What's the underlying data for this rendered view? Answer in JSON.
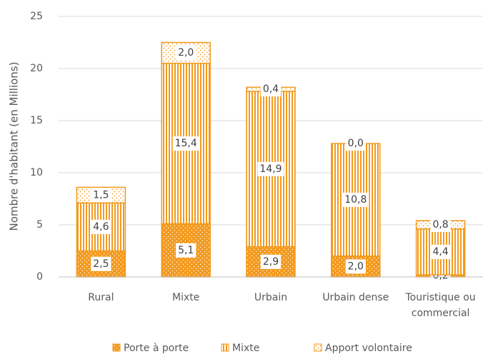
{
  "chart_data": {
    "type": "stacked-bar",
    "y_label": "Nombre d'habitant (en Millions)",
    "categories": [
      "Rural",
      "Mixte",
      "Urbain",
      "Urbain dense",
      "Touristique ou commercial"
    ],
    "series": [
      {
        "name": "Porte à porte",
        "color": "#f39a1e",
        "values": [
          2.5,
          5.1,
          2.9,
          2.0,
          0.2
        ],
        "value_labels": [
          "2,5",
          "5,1",
          "2,9",
          "2,0",
          "0,2"
        ]
      },
      {
        "name": "Mixte",
        "color": "#f39a1e",
        "values": [
          4.6,
          15.4,
          14.9,
          10.8,
          4.4
        ],
        "value_labels": [
          "4,6",
          "15,4",
          "14,9",
          "10,8",
          "4,4"
        ]
      },
      {
        "name": "Apport volontaire",
        "color": "#f39a1e",
        "values": [
          1.5,
          2.0,
          0.4,
          0.0,
          0.8
        ],
        "value_labels": [
          "1,5",
          "2,0",
          "0,4",
          "0,0",
          "0,8"
        ]
      }
    ],
    "ylim": [
      0,
      25
    ],
    "yticks": [
      0,
      5,
      10,
      15,
      20,
      25
    ],
    "grid": true,
    "legend": "bottom"
  }
}
